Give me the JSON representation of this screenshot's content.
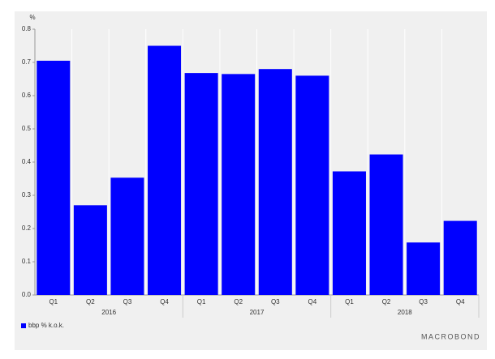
{
  "chart_data": {
    "type": "bar",
    "y_unit_label": "%",
    "categories": [
      "Q1",
      "Q2",
      "Q3",
      "Q4",
      "Q1",
      "Q2",
      "Q3",
      "Q4",
      "Q1",
      "Q2",
      "Q3",
      "Q4"
    ],
    "groups": [
      "2016",
      "2017",
      "2018"
    ],
    "series": [
      {
        "name": "bbp % k.o.k.",
        "color": "#0000ff",
        "values": [
          0.705,
          0.27,
          0.353,
          0.75,
          0.668,
          0.665,
          0.68,
          0.66,
          0.372,
          0.423,
          0.158,
          0.223
        ]
      }
    ],
    "ylim": [
      0,
      0.8
    ],
    "yticks": [
      {
        "value": 0,
        "label": "0.0"
      },
      0.1,
      0.2,
      0.3,
      0.4,
      0.5,
      0.6,
      0.7,
      0.8
    ],
    "grid": true,
    "legend": "bottom-left"
  },
  "branding": "MACROBOND"
}
